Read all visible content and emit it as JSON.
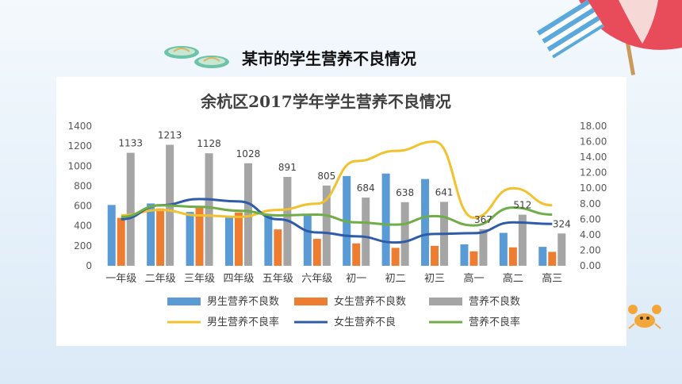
{
  "slide": {
    "title": "某市的学生营养不良情况"
  },
  "decorations": {
    "left_icon": "flip-flops-icon",
    "right_top_icon": "beach-umbrella-icon",
    "right_bottom_icon": "crab-icon"
  },
  "chart_data": {
    "type": "bar",
    "title": "余杭区2017学年学生营养不良情况",
    "categories": [
      "一年级",
      "二年级",
      "三年级",
      "四年级",
      "五年级",
      "六年级",
      "初一",
      "初二",
      "初三",
      "高一",
      "高二",
      "高三"
    ],
    "y_left": {
      "min": 0,
      "max": 1400,
      "step": 200,
      "tick_labels": [
        "0",
        "200",
        "400",
        "600",
        "800",
        "1000",
        "1200",
        "1400"
      ]
    },
    "y_right": {
      "min": 0,
      "max": 18,
      "step": 2,
      "tick_labels": [
        "0.00",
        "2.00",
        "4.00",
        "6.00",
        "8.00",
        "10.00",
        "12.00",
        "14.00",
        "16.00",
        "18.00"
      ]
    },
    "bar_series": [
      {
        "name": "男生营养不良数",
        "color": "#5b9bd5",
        "values": [
          610,
          625,
          540,
          490,
          515,
          520,
          900,
          925,
          870,
          215,
          330,
          190
        ]
      },
      {
        "name": "女生营养不良数",
        "color": "#ed7d31",
        "values": [
          480,
          575,
          580,
          535,
          365,
          270,
          225,
          180,
          200,
          145,
          185,
          140
        ]
      },
      {
        "name": "营养不良数",
        "color": "#a5a5a5",
        "values": [
          1133,
          1213,
          1128,
          1028,
          891,
          805,
          684,
          638,
          641,
          367,
          512,
          324
        ],
        "labels": [
          "1133",
          "1213",
          "1128",
          "1028",
          "891",
          "805",
          "684",
          "638",
          "641",
          "367",
          "512",
          "324"
        ]
      }
    ],
    "line_series": [
      {
        "name": "男生营养不良率",
        "color": "#f2c22e",
        "values": [
          6.5,
          7.2,
          6.5,
          6.3,
          7.2,
          8.0,
          13.5,
          14.8,
          16.0,
          6.2,
          10.0,
          7.8
        ]
      },
      {
        "name": "女生营养不良",
        "color": "#2e5ca8",
        "values": [
          6.0,
          7.8,
          8.6,
          8.3,
          6.0,
          4.3,
          3.8,
          3.0,
          4.1,
          4.2,
          5.6,
          5.4
        ]
      },
      {
        "name": "营养不良率",
        "color": "#70ad47",
        "values": [
          6.3,
          7.8,
          7.6,
          7.1,
          6.5,
          6.6,
          5.6,
          5.3,
          6.4,
          5.2,
          7.5,
          6.6
        ]
      }
    ],
    "legend_position": "bottom",
    "grid": false
  }
}
